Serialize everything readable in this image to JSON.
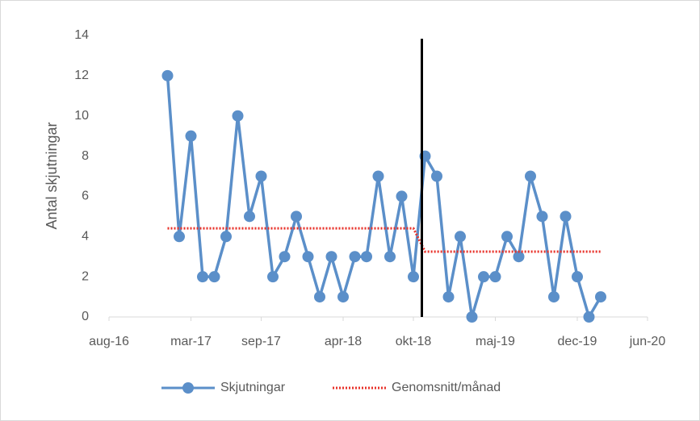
{
  "chart_data": {
    "type": "line",
    "y_label": "Antal skjutningar",
    "x": [
      "2017-01",
      "2017-02",
      "2017-03",
      "2017-04",
      "2017-05",
      "2017-06",
      "2017-07",
      "2017-08",
      "2017-09",
      "2017-10",
      "2017-11",
      "2017-12",
      "2018-01",
      "2018-02",
      "2018-03",
      "2018-04",
      "2018-05",
      "2018-06",
      "2018-07",
      "2018-08",
      "2018-09",
      "2018-10",
      "2018-11",
      "2018-12",
      "2019-01",
      "2019-02",
      "2019-03",
      "2019-04",
      "2019-05",
      "2019-06",
      "2019-07",
      "2019-08",
      "2019-09",
      "2019-10",
      "2019-11",
      "2019-12",
      "2020-01",
      "2020-02"
    ],
    "series": [
      {
        "name": "Skjutningar",
        "color": "#5b8fc9",
        "style": "solid",
        "markers": true,
        "values": [
          12,
          4,
          9,
          2,
          2,
          4,
          10,
          5,
          7,
          2,
          3,
          5,
          3,
          1,
          3,
          1,
          3,
          3,
          7,
          3,
          6,
          2,
          8,
          7,
          1,
          4,
          0,
          2,
          2,
          4,
          3,
          7,
          5,
          1,
          5,
          2,
          0,
          1
        ]
      },
      {
        "name": "Genomsnitt/månad",
        "color": "#e8322a",
        "style": "dotted",
        "markers": false,
        "values": [
          4.41,
          4.41,
          4.41,
          4.41,
          4.41,
          4.41,
          4.41,
          4.41,
          4.41,
          4.41,
          4.41,
          4.41,
          4.41,
          4.41,
          4.41,
          4.41,
          4.41,
          4.41,
          4.41,
          4.41,
          4.41,
          4.41,
          3.25,
          3.25,
          3.25,
          3.25,
          3.25,
          3.25,
          3.25,
          3.25,
          3.25,
          3.25,
          3.25,
          3.25,
          3.25,
          3.25,
          3.25,
          3.25
        ]
      }
    ],
    "divider_x": "2018-11",
    "xlim": [
      "2016-08",
      "2020-06"
    ],
    "xticks": [
      {
        "value": "2016-08",
        "label": "aug-16"
      },
      {
        "value": "2017-03",
        "label": "mar-17"
      },
      {
        "value": "2017-09",
        "label": "sep-17"
      },
      {
        "value": "2018-04",
        "label": "apr-18"
      },
      {
        "value": "2018-10",
        "label": "okt-18"
      },
      {
        "value": "2019-05",
        "label": "maj-19"
      },
      {
        "value": "2019-12",
        "label": "dec-19"
      },
      {
        "value": "2020-06",
        "label": "jun-20"
      }
    ],
    "ylim": [
      0,
      14
    ],
    "yticks": [
      0,
      2,
      4,
      6,
      8,
      10,
      12,
      14
    ],
    "grid": false,
    "legend": "bottom"
  }
}
